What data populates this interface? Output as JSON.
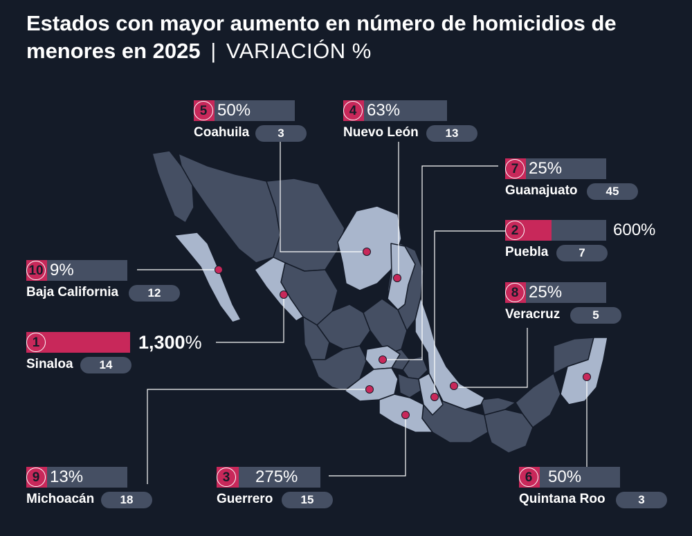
{
  "title": {
    "main": "Estados con mayor aumento en número de homicidios de menores en 2025",
    "separator": "|",
    "subtitle": "VARIACIÓN %"
  },
  "colors": {
    "background": "#141b28",
    "highlight_state": "#a9b6cc",
    "other_state": "#454f63",
    "accent": "#c8285a",
    "bar_track": "#454f63"
  },
  "states": [
    {
      "rank": "1",
      "name": "Sinaloa",
      "pct": "1,300",
      "pct_value": 1300,
      "count": "14"
    },
    {
      "rank": "2",
      "name": "Puebla",
      "pct": "600%",
      "pct_value": 600,
      "count": "7"
    },
    {
      "rank": "3",
      "name": "Guerrero",
      "pct": "275%",
      "pct_value": 275,
      "count": "15"
    },
    {
      "rank": "4",
      "name": "Nuevo León",
      "pct": "63%",
      "pct_value": 63,
      "count": "13"
    },
    {
      "rank": "5",
      "name": "Coahuila",
      "pct": "50%",
      "pct_value": 50,
      "count": "3"
    },
    {
      "rank": "6",
      "name": "Quintana Roo",
      "pct": "50%",
      "pct_value": 50,
      "count": "3"
    },
    {
      "rank": "7",
      "name": "Guanajuato",
      "pct": "25%",
      "pct_value": 25,
      "count": "45"
    },
    {
      "rank": "8",
      "name": "Veracruz",
      "pct": "25%",
      "pct_value": 25,
      "count": "5"
    },
    {
      "rank": "9",
      "name": "Michoacán",
      "pct": "13%",
      "pct_value": 13,
      "count": "18"
    },
    {
      "rank": "10",
      "name": "Baja California",
      "pct": "9%",
      "pct_value": 9,
      "count": "12"
    }
  ],
  "percent_symbol": "%"
}
